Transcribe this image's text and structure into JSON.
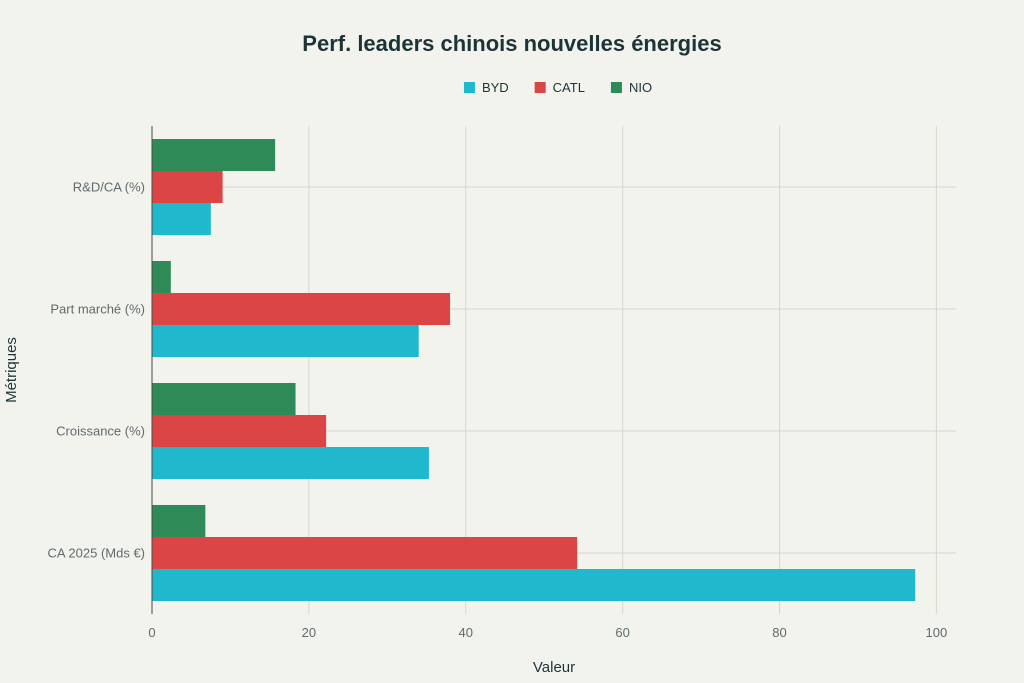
{
  "chart_data": {
    "type": "bar",
    "orientation": "horizontal",
    "title": "Perf. leaders chinois nouvelles énergies",
    "xlabel": "Valeur",
    "ylabel": "Métriques",
    "categories": [
      "R&D/CA (%)",
      "Part marché (%)",
      "Croissance (%)",
      "CA 2025 (Mds €)"
    ],
    "series": [
      {
        "name": "BYD",
        "color": "#1fb8cd",
        "values": [
          7.5,
          34,
          35.3,
          97.3
        ]
      },
      {
        "name": "CATL",
        "color": "#db4545",
        "values": [
          9,
          38,
          22.2,
          54.2
        ]
      },
      {
        "name": "NIO",
        "color": "#2e8b57",
        "values": [
          15.7,
          2.4,
          18.3,
          6.8
        ]
      }
    ],
    "xlim": [
      0,
      102.5
    ],
    "xticks": [
      0,
      20,
      40,
      60,
      80,
      100
    ],
    "grid": true,
    "legend": "top-center"
  }
}
